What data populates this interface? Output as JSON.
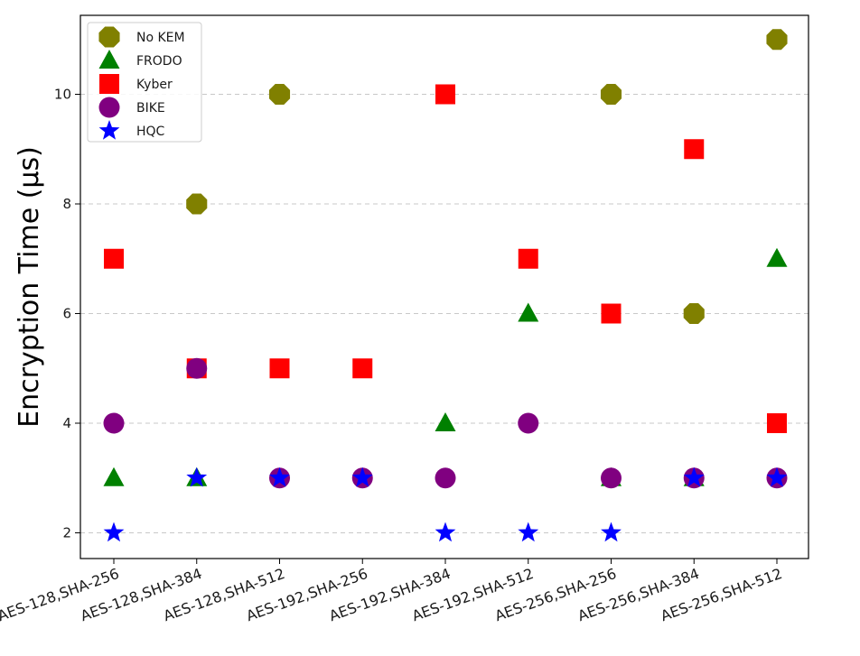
{
  "chart_data": {
    "type": "scatter",
    "title": "",
    "xlabel": "",
    "ylabel": "Encryption Time (µs)",
    "ylim": [
      1.5,
      11.5
    ],
    "yticks": [
      2,
      4,
      6,
      8,
      10
    ],
    "grid": "horizontal dashed",
    "legend_position": "top-left",
    "categories": [
      "AES-128,SHA-256",
      "AES-128,SHA-384",
      "AES-128,SHA-512",
      "AES-192,SHA-256",
      "AES-192,SHA-384",
      "AES-192,SHA-512",
      "AES-256,SHA-256",
      "AES-256,SHA-384",
      "AES-256,SHA-512"
    ],
    "series": [
      {
        "name": "No KEM",
        "marker": "octagon",
        "color": "#808000",
        "values": [
          null,
          8,
          10,
          null,
          null,
          null,
          10,
          6,
          11
        ]
      },
      {
        "name": "FRODO",
        "marker": "triangle",
        "color": "#008000",
        "values": [
          3,
          3,
          null,
          null,
          4,
          6,
          3,
          3,
          7
        ]
      },
      {
        "name": "Kyber",
        "marker": "square",
        "color": "#ff0000",
        "values": [
          7,
          5,
          5,
          5,
          10,
          7,
          6,
          9,
          4
        ]
      },
      {
        "name": "BIKE",
        "marker": "circle",
        "color": "#800080",
        "values": [
          4,
          5,
          3,
          3,
          3,
          4,
          3,
          3,
          3
        ]
      },
      {
        "name": "HQC",
        "marker": "star",
        "color": "#0000ff",
        "values": [
          2,
          3,
          3,
          3,
          2,
          2,
          2,
          3,
          3
        ]
      }
    ]
  }
}
